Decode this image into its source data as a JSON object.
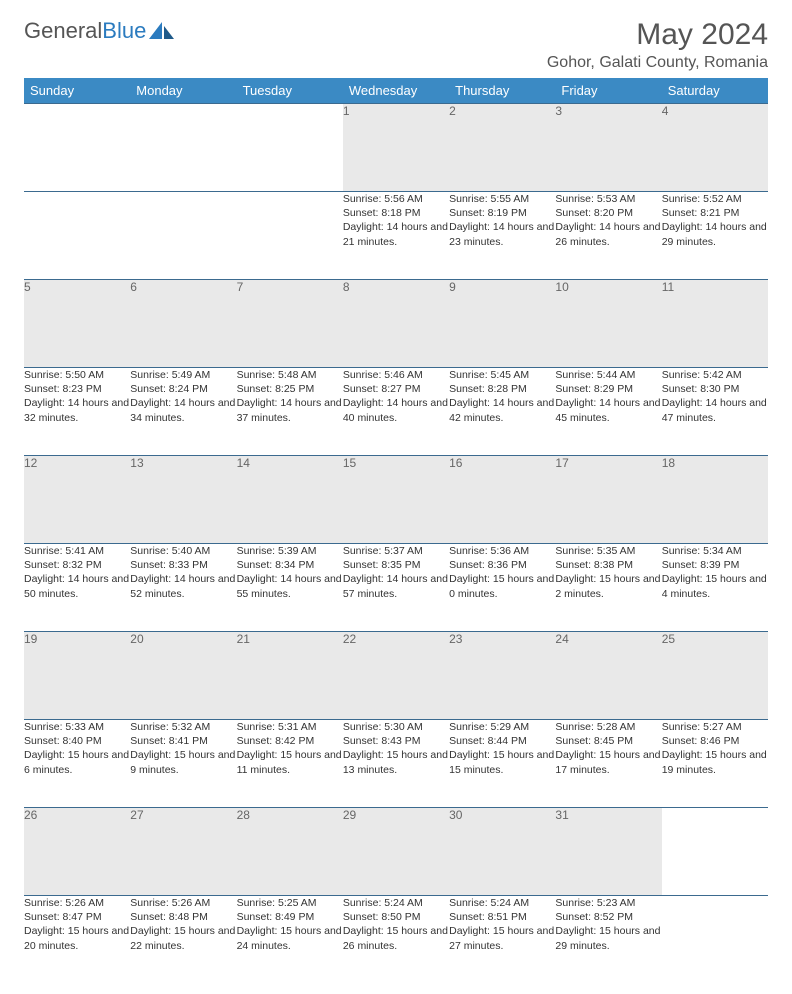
{
  "brand": {
    "part1": "General",
    "part2": "Blue"
  },
  "title": "May 2024",
  "location": "Gohor, Galati County, Romania",
  "weekdays": [
    "Sunday",
    "Monday",
    "Tuesday",
    "Wednesday",
    "Thursday",
    "Friday",
    "Saturday"
  ],
  "colors": {
    "header_bg": "#3b8ac4",
    "header_text": "#ffffff",
    "daynum_bg": "#e9e9e9",
    "daynum_text": "#666666",
    "border": "#3b6a8f",
    "title_text": "#555555",
    "body_text": "#333333",
    "logo_gray": "#555555",
    "logo_blue": "#2b7bbf"
  },
  "weeks": [
    [
      null,
      null,
      null,
      {
        "n": "1",
        "sr": "5:56 AM",
        "ss": "8:18 PM",
        "dl": "14 hours and 21 minutes."
      },
      {
        "n": "2",
        "sr": "5:55 AM",
        "ss": "8:19 PM",
        "dl": "14 hours and 23 minutes."
      },
      {
        "n": "3",
        "sr": "5:53 AM",
        "ss": "8:20 PM",
        "dl": "14 hours and 26 minutes."
      },
      {
        "n": "4",
        "sr": "5:52 AM",
        "ss": "8:21 PM",
        "dl": "14 hours and 29 minutes."
      }
    ],
    [
      {
        "n": "5",
        "sr": "5:50 AM",
        "ss": "8:23 PM",
        "dl": "14 hours and 32 minutes."
      },
      {
        "n": "6",
        "sr": "5:49 AM",
        "ss": "8:24 PM",
        "dl": "14 hours and 34 minutes."
      },
      {
        "n": "7",
        "sr": "5:48 AM",
        "ss": "8:25 PM",
        "dl": "14 hours and 37 minutes."
      },
      {
        "n": "8",
        "sr": "5:46 AM",
        "ss": "8:27 PM",
        "dl": "14 hours and 40 minutes."
      },
      {
        "n": "9",
        "sr": "5:45 AM",
        "ss": "8:28 PM",
        "dl": "14 hours and 42 minutes."
      },
      {
        "n": "10",
        "sr": "5:44 AM",
        "ss": "8:29 PM",
        "dl": "14 hours and 45 minutes."
      },
      {
        "n": "11",
        "sr": "5:42 AM",
        "ss": "8:30 PM",
        "dl": "14 hours and 47 minutes."
      }
    ],
    [
      {
        "n": "12",
        "sr": "5:41 AM",
        "ss": "8:32 PM",
        "dl": "14 hours and 50 minutes."
      },
      {
        "n": "13",
        "sr": "5:40 AM",
        "ss": "8:33 PM",
        "dl": "14 hours and 52 minutes."
      },
      {
        "n": "14",
        "sr": "5:39 AM",
        "ss": "8:34 PM",
        "dl": "14 hours and 55 minutes."
      },
      {
        "n": "15",
        "sr": "5:37 AM",
        "ss": "8:35 PM",
        "dl": "14 hours and 57 minutes."
      },
      {
        "n": "16",
        "sr": "5:36 AM",
        "ss": "8:36 PM",
        "dl": "15 hours and 0 minutes."
      },
      {
        "n": "17",
        "sr": "5:35 AM",
        "ss": "8:38 PM",
        "dl": "15 hours and 2 minutes."
      },
      {
        "n": "18",
        "sr": "5:34 AM",
        "ss": "8:39 PM",
        "dl": "15 hours and 4 minutes."
      }
    ],
    [
      {
        "n": "19",
        "sr": "5:33 AM",
        "ss": "8:40 PM",
        "dl": "15 hours and 6 minutes."
      },
      {
        "n": "20",
        "sr": "5:32 AM",
        "ss": "8:41 PM",
        "dl": "15 hours and 9 minutes."
      },
      {
        "n": "21",
        "sr": "5:31 AM",
        "ss": "8:42 PM",
        "dl": "15 hours and 11 minutes."
      },
      {
        "n": "22",
        "sr": "5:30 AM",
        "ss": "8:43 PM",
        "dl": "15 hours and 13 minutes."
      },
      {
        "n": "23",
        "sr": "5:29 AM",
        "ss": "8:44 PM",
        "dl": "15 hours and 15 minutes."
      },
      {
        "n": "24",
        "sr": "5:28 AM",
        "ss": "8:45 PM",
        "dl": "15 hours and 17 minutes."
      },
      {
        "n": "25",
        "sr": "5:27 AM",
        "ss": "8:46 PM",
        "dl": "15 hours and 19 minutes."
      }
    ],
    [
      {
        "n": "26",
        "sr": "5:26 AM",
        "ss": "8:47 PM",
        "dl": "15 hours and 20 minutes."
      },
      {
        "n": "27",
        "sr": "5:26 AM",
        "ss": "8:48 PM",
        "dl": "15 hours and 22 minutes."
      },
      {
        "n": "28",
        "sr": "5:25 AM",
        "ss": "8:49 PM",
        "dl": "15 hours and 24 minutes."
      },
      {
        "n": "29",
        "sr": "5:24 AM",
        "ss": "8:50 PM",
        "dl": "15 hours and 26 minutes."
      },
      {
        "n": "30",
        "sr": "5:24 AM",
        "ss": "8:51 PM",
        "dl": "15 hours and 27 minutes."
      },
      {
        "n": "31",
        "sr": "5:23 AM",
        "ss": "8:52 PM",
        "dl": "15 hours and 29 minutes."
      },
      null
    ]
  ],
  "labels": {
    "sunrise": "Sunrise: ",
    "sunset": "Sunset: ",
    "daylight": "Daylight: "
  }
}
